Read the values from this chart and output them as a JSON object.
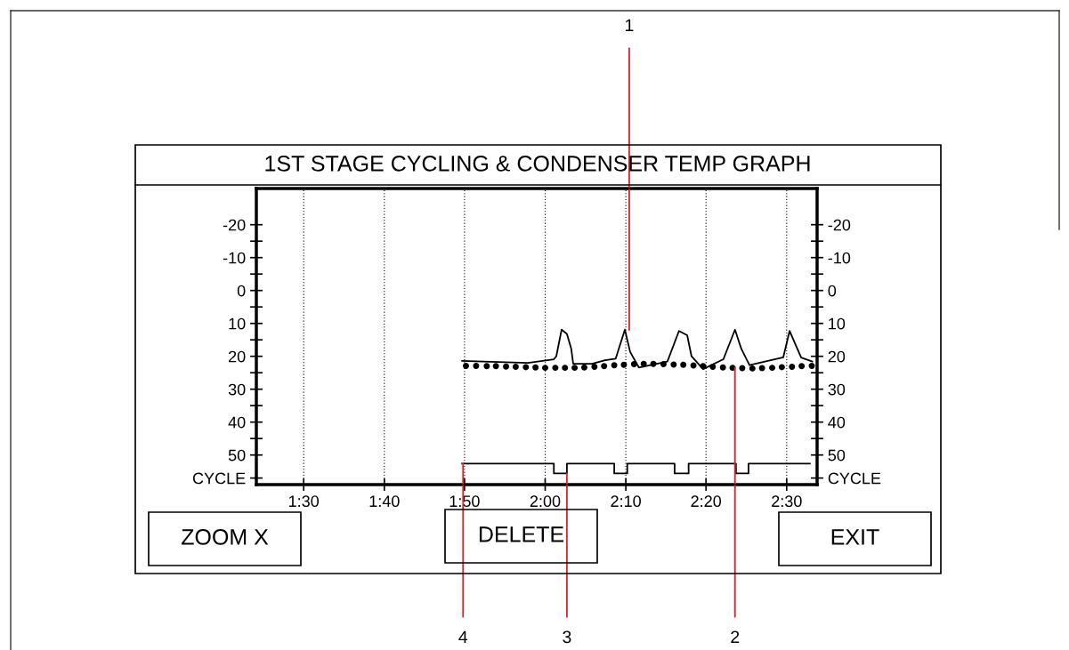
{
  "chart_data": {
    "type": "line",
    "title": "1ST STAGE CYCLING & CONDENSER TEMP GRAPH",
    "xlim": [
      1.402,
      2.563
    ],
    "ylim": [
      59,
      -31
    ],
    "y2lim": [
      59,
      -31
    ],
    "xticks": [
      {
        "value": 1.5,
        "label": "1:30"
      },
      {
        "value": 1.667,
        "label": "1:40"
      },
      {
        "value": 1.833,
        "label": "1:50"
      },
      {
        "value": 2.0,
        "label": "2:00"
      },
      {
        "value": 2.167,
        "label": "2:10"
      },
      {
        "value": 2.333,
        "label": "2:20"
      },
      {
        "value": 2.5,
        "label": "2:30"
      }
    ],
    "yticks": [
      -20,
      {
        "value": -15,
        "label": null
      },
      -10,
      {
        "value": -5,
        "label": null
      },
      0,
      {
        "value": 5,
        "label": null
      },
      10,
      {
        "value": 15,
        "label": null
      },
      20,
      {
        "value": 25,
        "label": null
      },
      30,
      {
        "value": 35,
        "label": null
      },
      40,
      {
        "value": 45,
        "label": null
      },
      50,
      {
        "value": 57,
        "label": "CYCLE"
      }
    ],
    "y2ticks": [
      -20,
      {
        "value": -15,
        "label": null
      },
      -10,
      {
        "value": -5,
        "label": null
      },
      0,
      {
        "value": 5,
        "label": null
      },
      10,
      {
        "value": 15,
        "label": null
      },
      20,
      {
        "value": 25,
        "label": null
      },
      30,
      {
        "value": 35,
        "label": null
      },
      40,
      {
        "value": 45,
        "label": null
      },
      50,
      {
        "value": 57,
        "label": "CYCLE"
      }
    ],
    "grid": "x",
    "legend": false,
    "series": [
      {
        "color": "#000000",
        "line_style": "solid",
        "x": [
          1.828,
          1.964,
          2.018,
          2.023,
          2.034,
          2.045,
          2.054,
          2.058,
          2.097,
          2.124,
          2.146,
          2.165,
          2.176,
          2.194,
          2.253,
          2.277,
          2.294,
          2.303,
          2.327,
          2.369,
          2.393,
          2.406,
          2.423,
          2.493,
          2.506,
          2.517,
          2.53,
          2.553
        ],
        "values": [
          21.4,
          22.0,
          20.9,
          20.0,
          11.9,
          13.2,
          17.7,
          22.3,
          22.3,
          21.2,
          20.7,
          11.9,
          18.7,
          23.4,
          21.6,
          12.3,
          13.6,
          20.0,
          23.9,
          20.9,
          11.9,
          17.7,
          22.7,
          20.3,
          12.3,
          16.0,
          20.4,
          21.6
        ]
      },
      {
        "type": "scatter",
        "color": "#000000",
        "marker": "circle",
        "x": [
          1.836,
          1.857,
          1.879,
          1.898,
          1.919,
          1.939,
          1.96,
          1.98,
          2.0,
          2.021,
          2.041,
          2.061,
          2.081,
          2.102,
          2.122,
          2.143,
          2.163,
          2.184,
          2.204,
          2.224,
          2.245,
          2.266,
          2.286,
          2.307,
          2.327,
          2.347,
          2.368,
          2.388,
          2.408,
          2.429,
          2.449,
          2.47,
          2.49,
          2.511,
          2.531,
          2.552
        ],
        "values": [
          22.9,
          22.9,
          23.0,
          23.0,
          23.1,
          23.2,
          23.3,
          23.4,
          23.5,
          23.5,
          23.5,
          23.5,
          23.4,
          23.2,
          23.0,
          22.7,
          22.6,
          22.4,
          22.3,
          22.3,
          22.4,
          22.5,
          22.6,
          22.8,
          23.0,
          23.2,
          23.4,
          23.5,
          23.6,
          23.7,
          23.6,
          23.5,
          23.3,
          23.2,
          23.0,
          22.9
        ]
      },
      {
        "type": "step",
        "color": "#000000",
        "line_style": "solid",
        "x": [
          1.828,
          2.018,
          2.045,
          2.143,
          2.17,
          2.268,
          2.297,
          2.395,
          2.421,
          2.548
        ],
        "values": [
          52.6,
          55.6,
          52.6,
          55.6,
          52.6,
          55.6,
          52.6,
          55.6,
          52.6,
          52.6
        ]
      }
    ],
    "annotations": [
      {
        "text": "1",
        "x": 2.174,
        "y": 12.0
      },
      {
        "text": "2",
        "x": 2.393,
        "y": 23.5
      },
      {
        "text": "3",
        "x": 2.045,
        "y": 55.6
      },
      {
        "text": "4",
        "x": 1.83,
        "y": 52.6
      },
      "ZOOM X",
      "DELETE",
      "EXIT"
    ]
  }
}
